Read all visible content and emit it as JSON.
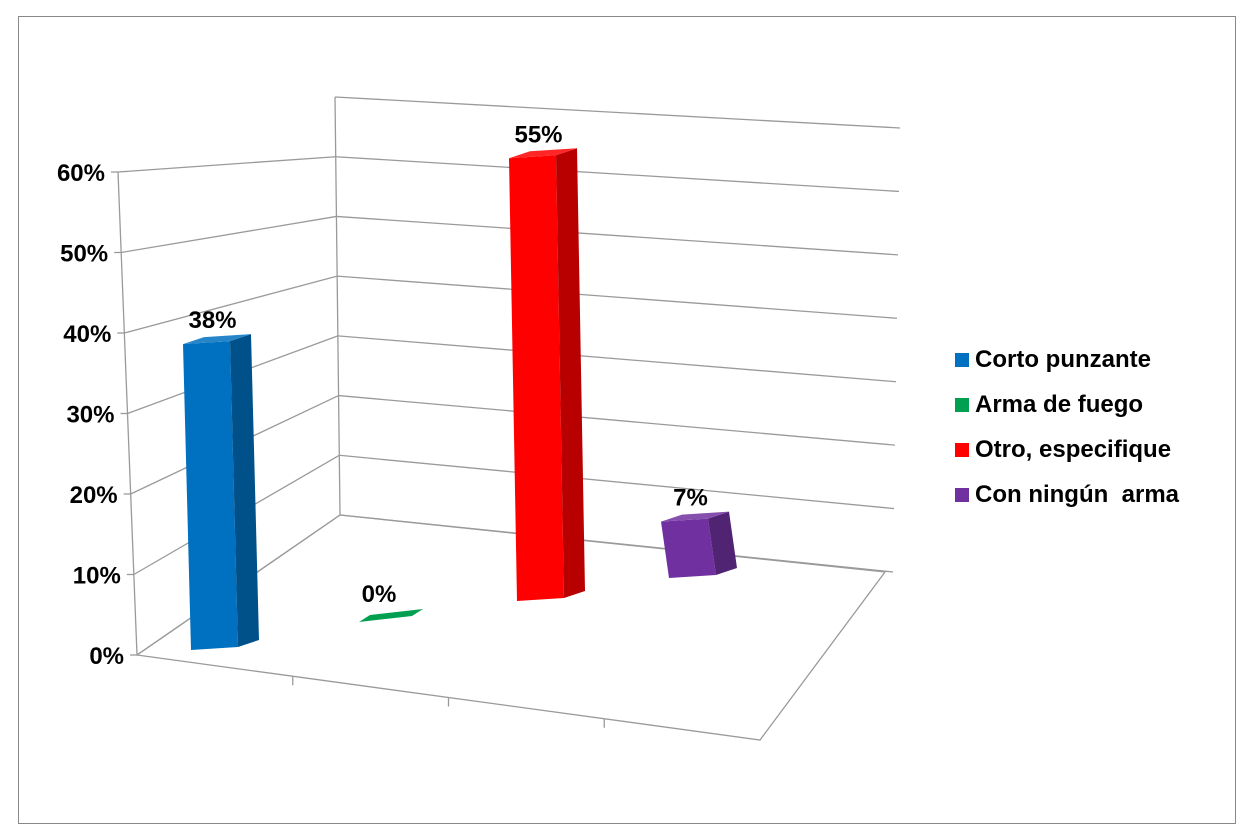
{
  "chart_data": {
    "type": "bar",
    "categories": [
      "Corto punzante",
      "Arma de fuego",
      "Otro, especifique",
      "Con ningún  arma"
    ],
    "values": [
      38,
      0,
      55,
      7
    ],
    "value_labels": [
      "38%",
      "0%",
      "55%",
      "7%"
    ],
    "colors": [
      "#0070C0",
      "#00A050",
      "#FF0000",
      "#7030A0"
    ],
    "yticks": [
      "0%",
      "10%",
      "20%",
      "30%",
      "40%",
      "50%",
      "60%"
    ],
    "ylim": [
      0,
      70
    ],
    "style": "3d-clustered-columns",
    "grid": true,
    "legend_position": "right"
  },
  "legend": {
    "items": [
      {
        "label": "Corto punzante",
        "color": "#0070C0"
      },
      {
        "label": "Arma de fuego",
        "color": "#00A050"
      },
      {
        "label": "Otro, especifique",
        "color": "#FF0000"
      },
      {
        "label": "Con ningún  arma",
        "color": "#7030A0"
      }
    ]
  }
}
